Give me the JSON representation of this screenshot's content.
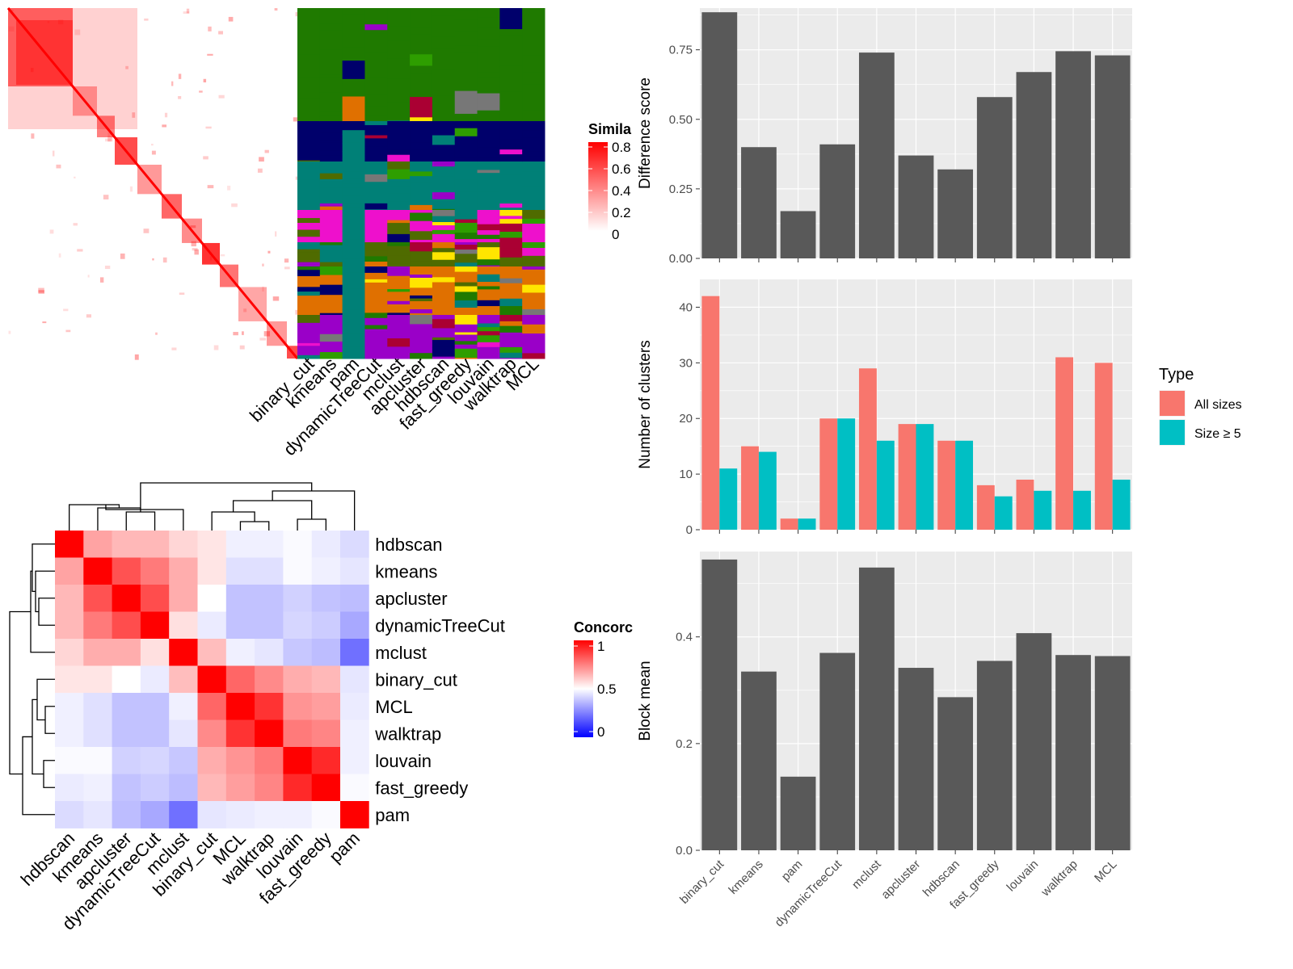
{
  "chart_data": [
    {
      "type": "heatmap",
      "panel": "similarity-matrix",
      "legend": {
        "title": "Similarity",
        "visible_title": "Simila",
        "ticks": [
          "0.8",
          "0.6",
          "0.4",
          "0.2",
          "0"
        ]
      },
      "colors": {
        "low": "#ffffff",
        "high": "#ff0000"
      }
    },
    {
      "type": "heatmap",
      "panel": "cluster-labels",
      "categories": [
        "binary_cut",
        "kmeans",
        "pam",
        "dynamicTreeCut",
        "mclust",
        "apcluster",
        "hdbscan",
        "fast_greedy",
        "louvain",
        "walktrap",
        "MCL"
      ],
      "palette": [
        "#1f7a00",
        "#00006b",
        "#008077",
        "#ee10cc",
        "#9a00c8",
        "#e07000",
        "#4f6b00",
        "#aa0033",
        "#ffe500",
        "#2e9e00",
        "#777777"
      ]
    },
    {
      "type": "heatmap",
      "panel": "concordance",
      "rows": [
        "hdbscan",
        "kmeans",
        "apcluster",
        "dynamicTreeCut",
        "mclust",
        "binary_cut",
        "MCL",
        "walktrap",
        "louvain",
        "fast_greedy",
        "pam"
      ],
      "cols": [
        "hdbscan",
        "kmeans",
        "apcluster",
        "dynamicTreeCut",
        "mclust",
        "binary_cut",
        "MCL",
        "walktrap",
        "louvain",
        "fast_greedy",
        "pam"
      ],
      "values": [
        [
          1.0,
          0.68,
          0.64,
          0.64,
          0.58,
          0.55,
          0.47,
          0.47,
          0.49,
          0.46,
          0.43
        ],
        [
          0.68,
          1.0,
          0.84,
          0.76,
          0.66,
          0.55,
          0.44,
          0.44,
          0.49,
          0.47,
          0.45
        ],
        [
          0.64,
          0.84,
          1.0,
          0.85,
          0.66,
          0.5,
          0.38,
          0.38,
          0.41,
          0.38,
          0.37
        ],
        [
          0.64,
          0.76,
          0.85,
          1.0,
          0.56,
          0.46,
          0.38,
          0.38,
          0.42,
          0.4,
          0.33
        ],
        [
          0.58,
          0.66,
          0.66,
          0.56,
          1.0,
          0.63,
          0.47,
          0.45,
          0.39,
          0.37,
          0.22
        ],
        [
          0.55,
          0.55,
          0.5,
          0.46,
          0.63,
          1.0,
          0.8,
          0.73,
          0.66,
          0.64,
          0.45
        ],
        [
          0.47,
          0.44,
          0.38,
          0.38,
          0.47,
          0.8,
          1.0,
          0.9,
          0.71,
          0.69,
          0.46
        ],
        [
          0.47,
          0.44,
          0.38,
          0.38,
          0.45,
          0.73,
          0.9,
          1.0,
          0.76,
          0.74,
          0.47
        ],
        [
          0.49,
          0.49,
          0.41,
          0.42,
          0.39,
          0.66,
          0.71,
          0.76,
          1.0,
          0.92,
          0.47
        ],
        [
          0.46,
          0.47,
          0.38,
          0.4,
          0.37,
          0.64,
          0.69,
          0.74,
          0.92,
          1.0,
          0.49
        ],
        [
          0.43,
          0.45,
          0.37,
          0.33,
          0.22,
          0.45,
          0.46,
          0.47,
          0.47,
          0.49,
          1.0
        ]
      ],
      "legend": {
        "title": "Concordance",
        "visible_title": "Concorc",
        "ticks": [
          "1",
          "0.5",
          "0"
        ]
      },
      "colors": {
        "low": "#0000ff",
        "mid": "#ffffff",
        "high": "#ff0000"
      }
    },
    {
      "type": "bar",
      "panel": "difference-score",
      "ylabel": "Difference score",
      "ylim": [
        0,
        0.9
      ],
      "yticks": [
        "0.00",
        "0.25",
        "0.50",
        "0.75"
      ],
      "categories": [
        "binary_cut",
        "kmeans",
        "pam",
        "dynamicTreeCut",
        "mclust",
        "apcluster",
        "hdbscan",
        "fast_greedy",
        "louvain",
        "walktrap",
        "MCL"
      ],
      "values": [
        0.885,
        0.4,
        0.17,
        0.41,
        0.74,
        0.37,
        0.32,
        0.58,
        0.67,
        0.745,
        0.73
      ]
    },
    {
      "type": "bar",
      "panel": "number-of-clusters",
      "ylabel": "Number of clusters",
      "ylim": [
        0,
        45
      ],
      "yticks": [
        "0",
        "10",
        "20",
        "30",
        "40"
      ],
      "categories": [
        "binary_cut",
        "kmeans",
        "pam",
        "dynamicTreeCut",
        "mclust",
        "apcluster",
        "hdbscan",
        "fast_greedy",
        "louvain",
        "walktrap",
        "MCL"
      ],
      "legend": {
        "title": "Type",
        "placement": "right"
      },
      "series": [
        {
          "name": "All sizes",
          "color": "#f8766d",
          "values": [
            42,
            15,
            2,
            20,
            29,
            19,
            16,
            8,
            9,
            31,
            30
          ]
        },
        {
          "name": "Size ≥ 5",
          "color": "#00bfc4",
          "values": [
            11,
            14,
            2,
            20,
            16,
            19,
            16,
            6,
            7,
            7,
            9
          ]
        }
      ]
    },
    {
      "type": "bar",
      "panel": "block-mean",
      "ylabel": "Block mean",
      "ylim": [
        0,
        0.56
      ],
      "yticks": [
        "0.0",
        "0.2",
        "0.4"
      ],
      "categories": [
        "binary_cut",
        "kmeans",
        "pam",
        "dynamicTreeCut",
        "mclust",
        "apcluster",
        "hdbscan",
        "fast_greedy",
        "louvain",
        "walktrap",
        "MCL"
      ],
      "values": [
        0.545,
        0.335,
        0.138,
        0.37,
        0.53,
        0.342,
        0.287,
        0.355,
        0.407,
        0.366,
        0.364
      ]
    }
  ]
}
